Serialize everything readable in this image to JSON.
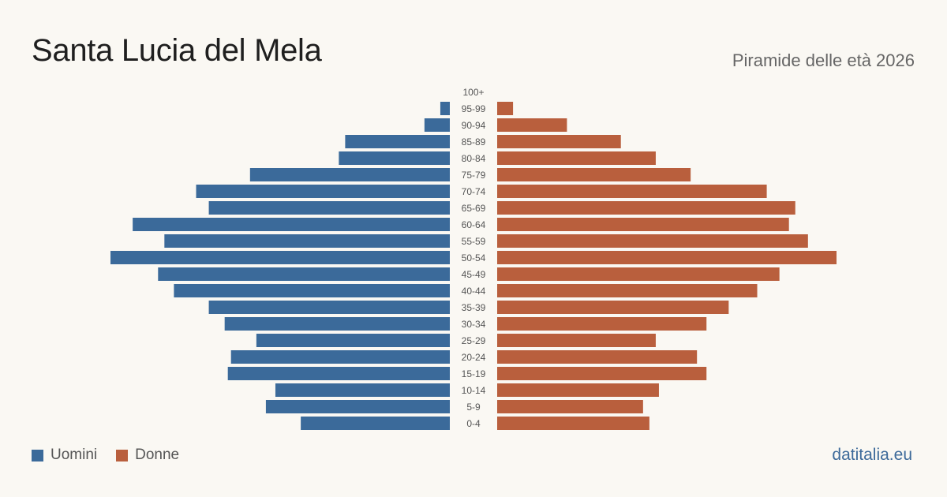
{
  "header": {
    "title": "Santa Lucia del Mela",
    "subtitle": "Piramide delle età 2026"
  },
  "legend": {
    "men_label": "Uomini",
    "women_label": "Donne"
  },
  "footer": {
    "source": "datitalia.eu"
  },
  "colors": {
    "men": "#3b6a9a",
    "women": "#b95f3d",
    "background": "#faf8f3",
    "age_label": "#555555"
  },
  "chart_data": {
    "type": "bar",
    "orientation": "horizontal-pyramid",
    "title": "Santa Lucia del Mela",
    "subtitle": "Piramide delle età 2026",
    "categories": [
      "100+",
      "95-99",
      "90-94",
      "85-89",
      "80-84",
      "75-79",
      "70-74",
      "65-69",
      "60-64",
      "55-59",
      "50-54",
      "45-49",
      "40-44",
      "35-39",
      "30-34",
      "25-29",
      "20-24",
      "15-19",
      "10-14",
      "5-9",
      "0-4"
    ],
    "series": [
      {
        "name": "Uomini",
        "values": [
          0,
          3,
          8,
          33,
          35,
          63,
          80,
          76,
          100,
          90,
          107,
          92,
          87,
          76,
          71,
          61,
          69,
          70,
          55,
          58,
          47
        ]
      },
      {
        "name": "Donne",
        "values": [
          0,
          5,
          22,
          39,
          50,
          61,
          85,
          94,
          92,
          98,
          107,
          89,
          82,
          73,
          66,
          50,
          63,
          66,
          51,
          46,
          48
        ]
      }
    ],
    "legend_position": "bottom-left",
    "grid": false,
    "axis_visible": false
  }
}
